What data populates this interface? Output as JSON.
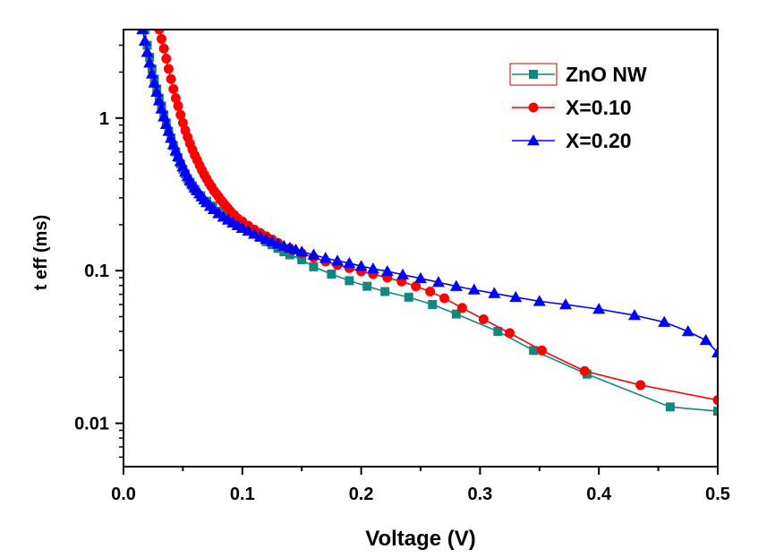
{
  "chart_data": {
    "type": "line",
    "title": "",
    "xlabel": "Voltage (V)",
    "ylabel": "t eff (ms)",
    "xlim": [
      0.0,
      0.5
    ],
    "ylim": [
      0.0052,
      3.8
    ],
    "yscale": "log",
    "grid": false,
    "legend_position": "top-right",
    "x_ticks": [
      "0.0",
      "0.1",
      "0.2",
      "0.3",
      "0.4",
      "0.5"
    ],
    "y_ticks": [
      "0.01",
      "0.1",
      "1"
    ],
    "series": [
      {
        "name": "ZnO NW",
        "color": "#12877f",
        "marker": "square",
        "x": [
          0.018,
          0.02,
          0.022,
          0.024,
          0.026,
          0.028,
          0.03,
          0.032,
          0.034,
          0.036,
          0.038,
          0.04,
          0.042,
          0.044,
          0.046,
          0.048,
          0.05,
          0.052,
          0.054,
          0.056,
          0.058,
          0.06,
          0.065,
          0.07,
          0.075,
          0.08,
          0.085,
          0.09,
          0.095,
          0.1,
          0.105,
          0.11,
          0.115,
          0.12,
          0.125,
          0.13,
          0.135,
          0.14,
          0.15,
          0.16,
          0.175,
          0.19,
          0.205,
          0.22,
          0.24,
          0.26,
          0.28,
          0.315,
          0.345,
          0.39,
          0.46,
          0.5
        ],
        "y": [
          3.8,
          3.0,
          2.5,
          2.1,
          1.8,
          1.55,
          1.35,
          1.2,
          1.05,
          0.93,
          0.82,
          0.74,
          0.66,
          0.6,
          0.55,
          0.5,
          0.46,
          0.43,
          0.4,
          0.38,
          0.36,
          0.34,
          0.31,
          0.285,
          0.265,
          0.245,
          0.23,
          0.218,
          0.205,
          0.195,
          0.185,
          0.175,
          0.165,
          0.155,
          0.148,
          0.14,
          0.133,
          0.127,
          0.118,
          0.106,
          0.095,
          0.086,
          0.079,
          0.073,
          0.067,
          0.06,
          0.052,
          0.04,
          0.03,
          0.021,
          0.0128,
          0.012
        ]
      },
      {
        "name": "X=0.10",
        "color": "#ff0000",
        "marker": "circle",
        "x": [
          0.03,
          0.032,
          0.034,
          0.036,
          0.038,
          0.04,
          0.042,
          0.044,
          0.046,
          0.048,
          0.05,
          0.052,
          0.054,
          0.056,
          0.058,
          0.06,
          0.062,
          0.064,
          0.066,
          0.068,
          0.07,
          0.072,
          0.074,
          0.076,
          0.078,
          0.08,
          0.082,
          0.084,
          0.086,
          0.088,
          0.09,
          0.093,
          0.096,
          0.1,
          0.105,
          0.11,
          0.115,
          0.12,
          0.125,
          0.13,
          0.14,
          0.15,
          0.16,
          0.17,
          0.18,
          0.19,
          0.2,
          0.21,
          0.222,
          0.234,
          0.246,
          0.258,
          0.27,
          0.285,
          0.303,
          0.325,
          0.352,
          0.388,
          0.435,
          0.5
        ],
        "y": [
          3.8,
          3.3,
          2.85,
          2.45,
          2.1,
          1.8,
          1.55,
          1.35,
          1.2,
          1.05,
          0.93,
          0.83,
          0.75,
          0.68,
          0.62,
          0.57,
          0.53,
          0.49,
          0.455,
          0.425,
          0.4,
          0.375,
          0.355,
          0.335,
          0.32,
          0.305,
          0.29,
          0.278,
          0.266,
          0.255,
          0.245,
          0.232,
          0.22,
          0.21,
          0.197,
          0.186,
          0.177,
          0.168,
          0.16,
          0.152,
          0.14,
          0.13,
          0.122,
          0.115,
          0.109,
          0.104,
          0.099,
          0.095,
          0.09,
          0.085,
          0.079,
          0.073,
          0.066,
          0.057,
          0.048,
          0.039,
          0.03,
          0.022,
          0.0178,
          0.0142
        ]
      },
      {
        "name": "X=0.20",
        "color": "#0000ff",
        "marker": "triangle",
        "x": [
          0.016,
          0.018,
          0.02,
          0.022,
          0.024,
          0.026,
          0.028,
          0.03,
          0.032,
          0.034,
          0.036,
          0.038,
          0.04,
          0.042,
          0.044,
          0.046,
          0.048,
          0.05,
          0.052,
          0.054,
          0.056,
          0.058,
          0.06,
          0.062,
          0.064,
          0.066,
          0.068,
          0.07,
          0.073,
          0.076,
          0.08,
          0.084,
          0.088,
          0.092,
          0.096,
          0.1,
          0.105,
          0.11,
          0.115,
          0.12,
          0.125,
          0.13,
          0.135,
          0.14,
          0.145,
          0.15,
          0.16,
          0.17,
          0.18,
          0.19,
          0.2,
          0.21,
          0.222,
          0.235,
          0.25,
          0.265,
          0.28,
          0.295,
          0.312,
          0.33,
          0.35,
          0.372,
          0.4,
          0.43,
          0.455,
          0.475,
          0.49,
          0.5
        ],
        "y": [
          3.8,
          3.2,
          2.7,
          2.3,
          1.95,
          1.7,
          1.48,
          1.3,
          1.15,
          1.02,
          0.91,
          0.82,
          0.74,
          0.67,
          0.61,
          0.56,
          0.52,
          0.48,
          0.445,
          0.415,
          0.39,
          0.37,
          0.35,
          0.335,
          0.32,
          0.305,
          0.292,
          0.28,
          0.265,
          0.252,
          0.237,
          0.225,
          0.215,
          0.206,
          0.198,
          0.19,
          0.182,
          0.174,
          0.167,
          0.161,
          0.155,
          0.15,
          0.145,
          0.141,
          0.137,
          0.133,
          0.127,
          0.121,
          0.116,
          0.112,
          0.107,
          0.103,
          0.099,
          0.094,
          0.089,
          0.084,
          0.079,
          0.075,
          0.071,
          0.067,
          0.063,
          0.06,
          0.056,
          0.051,
          0.046,
          0.04,
          0.035,
          0.029
        ]
      }
    ]
  }
}
